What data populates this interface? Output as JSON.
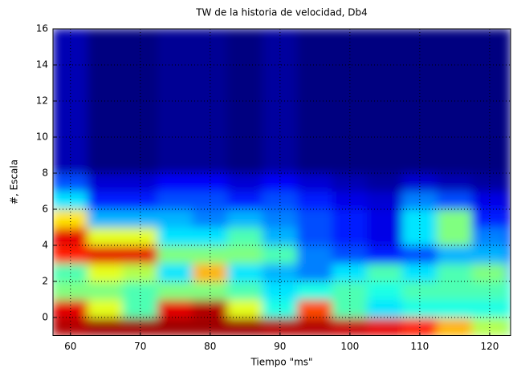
{
  "chart_data": {
    "type": "heatmap",
    "title": "TW de la historia de velocidad, Db4",
    "xlabel": "Tiempo \"ms\"",
    "ylabel": "#, Escala",
    "colormap": "jet",
    "clim": [
      0,
      1
    ],
    "grid": true,
    "xlim": [
      57.5,
      123
    ],
    "ylim": [
      -1,
      16
    ],
    "xticks": [
      60,
      70,
      80,
      90,
      100,
      110,
      120
    ],
    "yticks": [
      0,
      2,
      4,
      6,
      8,
      10,
      12,
      14,
      16
    ],
    "x_edges": [
      57.5,
      62.5,
      67.5,
      72.5,
      77.5,
      82.5,
      87.5,
      92.5,
      97.5,
      102.5,
      107.5,
      112.5,
      117.5,
      122.5,
      123
    ],
    "y_edges": [
      -1,
      0,
      1,
      2,
      3,
      4,
      5,
      6,
      7,
      8,
      16
    ],
    "z": [
      [
        0.95,
        0.97,
        0.97,
        0.97,
        0.97,
        0.97,
        0.95,
        0.95,
        0.93,
        0.9,
        0.85,
        0.7,
        0.55,
        0.5
      ],
      [
        0.9,
        0.6,
        0.45,
        0.9,
        0.95,
        0.6,
        0.4,
        0.8,
        0.45,
        0.35,
        0.4,
        0.4,
        0.4,
        0.4
      ],
      [
        0.5,
        0.5,
        0.45,
        0.5,
        0.5,
        0.45,
        0.35,
        0.4,
        0.45,
        0.4,
        0.45,
        0.45,
        0.45,
        0.4
      ],
      [
        0.45,
        0.6,
        0.55,
        0.35,
        0.7,
        0.35,
        0.3,
        0.25,
        0.35,
        0.45,
        0.35,
        0.45,
        0.5,
        0.3
      ],
      [
        0.85,
        0.9,
        0.9,
        0.5,
        0.5,
        0.5,
        0.45,
        0.25,
        0.2,
        0.15,
        0.2,
        0.3,
        0.3,
        0.2
      ],
      [
        0.9,
        0.6,
        0.6,
        0.35,
        0.35,
        0.45,
        0.3,
        0.2,
        0.15,
        0.1,
        0.35,
        0.5,
        0.25,
        0.15
      ],
      [
        0.65,
        0.3,
        0.3,
        0.3,
        0.25,
        0.3,
        0.25,
        0.2,
        0.15,
        0.1,
        0.35,
        0.5,
        0.15,
        0.1
      ],
      [
        0.35,
        0.15,
        0.15,
        0.2,
        0.2,
        0.15,
        0.2,
        0.15,
        0.1,
        0.08,
        0.25,
        0.2,
        0.1,
        0.05
      ],
      [
        0.2,
        0.08,
        0.08,
        0.12,
        0.12,
        0.08,
        0.12,
        0.08,
        0.05,
        0.03,
        0.08,
        0.05,
        0.03,
        0.02
      ],
      [
        0.05,
        0,
        0,
        0.02,
        0.02,
        0,
        0.03,
        0,
        0,
        0,
        0,
        0,
        0,
        0
      ]
    ]
  }
}
